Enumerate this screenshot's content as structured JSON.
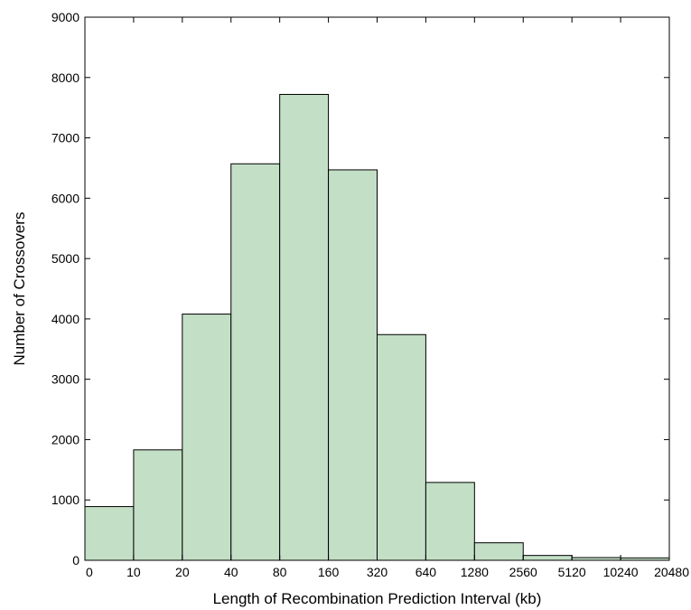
{
  "chart_data": {
    "type": "bar",
    "title": "",
    "xlabel": "Length of Recombination Prediction Interval (kb)",
    "ylabel": "Number of Crossovers",
    "bin_edges": [
      "0",
      "10",
      "20",
      "40",
      "80",
      "160",
      "320",
      "640",
      "1280",
      "2560",
      "5120",
      "10240",
      "20480"
    ],
    "values": [
      890,
      1830,
      4080,
      6570,
      7720,
      6470,
      3740,
      1290,
      290,
      80,
      45,
      40
    ],
    "ylim": [
      0,
      9000
    ],
    "yticks": [
      0,
      1000,
      2000,
      3000,
      4000,
      5000,
      6000,
      7000,
      8000,
      9000
    ],
    "grid": false,
    "legend": "none",
    "bar_color": "#c3dfc6",
    "edge_color": "#000000"
  }
}
